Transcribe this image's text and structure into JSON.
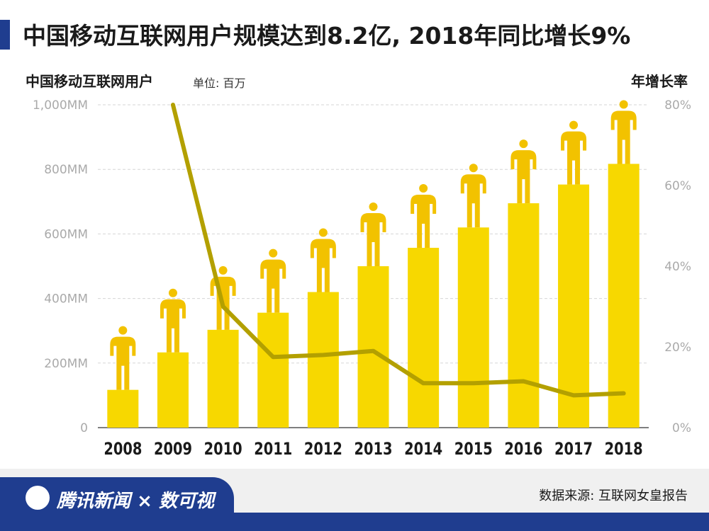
{
  "title": "中国移动互联网用户规模达到8.2亿, 2018年同比增长9%",
  "left_axis_label": "中国移动互联网用户",
  "unit_label": "单位: 百万",
  "right_axis_label": "年增长率",
  "source": "数据来源: 互联网女皇报告",
  "logo": {
    "brand": "腾讯新闻",
    "separator": "×",
    "partner": "数可视"
  },
  "colors": {
    "bar": "#f7d800",
    "person": "#f2c200",
    "line": "#b3a000",
    "grid": "#d5d5d5",
    "tick": "#aaaaaa",
    "brand": "#1f3d8f"
  },
  "chart_data": {
    "type": "bar",
    "categories": [
      "2008",
      "2009",
      "2010",
      "2011",
      "2012",
      "2013",
      "2014",
      "2015",
      "2016",
      "2017",
      "2018"
    ],
    "series": [
      {
        "values": [
          117,
          233,
          303,
          356,
          420,
          500,
          557,
          620,
          695,
          753,
          817
        ]
      },
      {
        "values": [
          null,
          80,
          30,
          17.5,
          18,
          19,
          11,
          11,
          11.5,
          8,
          8.5
        ]
      }
    ],
    "ylim": [
      0,
      1000
    ],
    "y2lim": [
      0,
      80
    ],
    "yticks": [
      "0",
      "200MM",
      "400MM",
      "600MM",
      "800MM",
      "1,000MM"
    ],
    "y2ticks": [
      "0%",
      "20%",
      "40%",
      "60%",
      "80%"
    ],
    "grid": true
  }
}
